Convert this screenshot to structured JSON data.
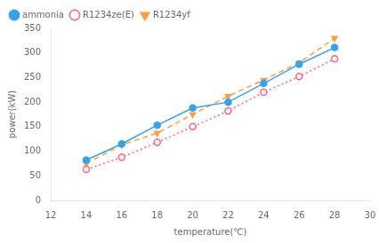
{
  "chart_data": {
    "type": "line",
    "x": [
      14,
      16,
      18,
      20,
      22,
      24,
      26,
      28
    ],
    "series": [
      {
        "name": "ammonia",
        "values": [
          82,
          115,
          153,
          188,
          200,
          238,
          277,
          311
        ],
        "line_style": "solid",
        "marker": "circle"
      },
      {
        "name": "R1234ze(E)",
        "values": [
          63,
          88,
          118,
          150,
          182,
          220,
          252,
          288
        ],
        "line_style": "dotted",
        "marker": "open_circle"
      },
      {
        "name": "R1234yf",
        "values": [
          75,
          113,
          137,
          175,
          212,
          245,
          280,
          330
        ],
        "line_style": "dashed",
        "marker": "triangle_down"
      }
    ],
    "xlabel": "temperature(℃)",
    "ylabel": "power(kW)",
    "xlim": [
      12,
      30
    ],
    "ylim": [
      0,
      350
    ],
    "xticks": [
      12,
      14,
      16,
      18,
      20,
      22,
      24,
      26,
      28,
      30
    ],
    "yticks": [
      0,
      50,
      100,
      150,
      200,
      250,
      300,
      350
    ],
    "grid": false,
    "legend": "upper left"
  }
}
